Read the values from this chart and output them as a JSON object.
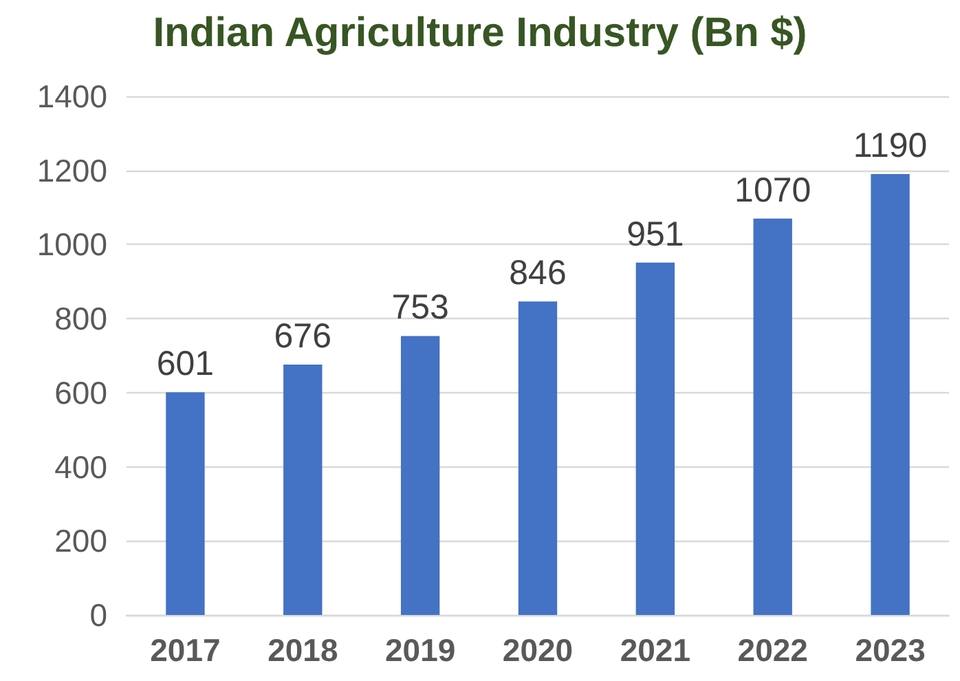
{
  "chart_data": {
    "type": "bar",
    "title": "Indian Agriculture Industry (Bn $)",
    "categories": [
      "2017",
      "2018",
      "2019",
      "2020",
      "2021",
      "2022",
      "2023"
    ],
    "values": [
      601,
      676,
      753,
      846,
      951,
      1070,
      1190
    ],
    "color": "#4472c4",
    "ylim": [
      0,
      1400
    ],
    "yticks": [
      0,
      200,
      400,
      600,
      800,
      1000,
      1200,
      1400
    ],
    "grid": "y",
    "data_labels": true
  }
}
